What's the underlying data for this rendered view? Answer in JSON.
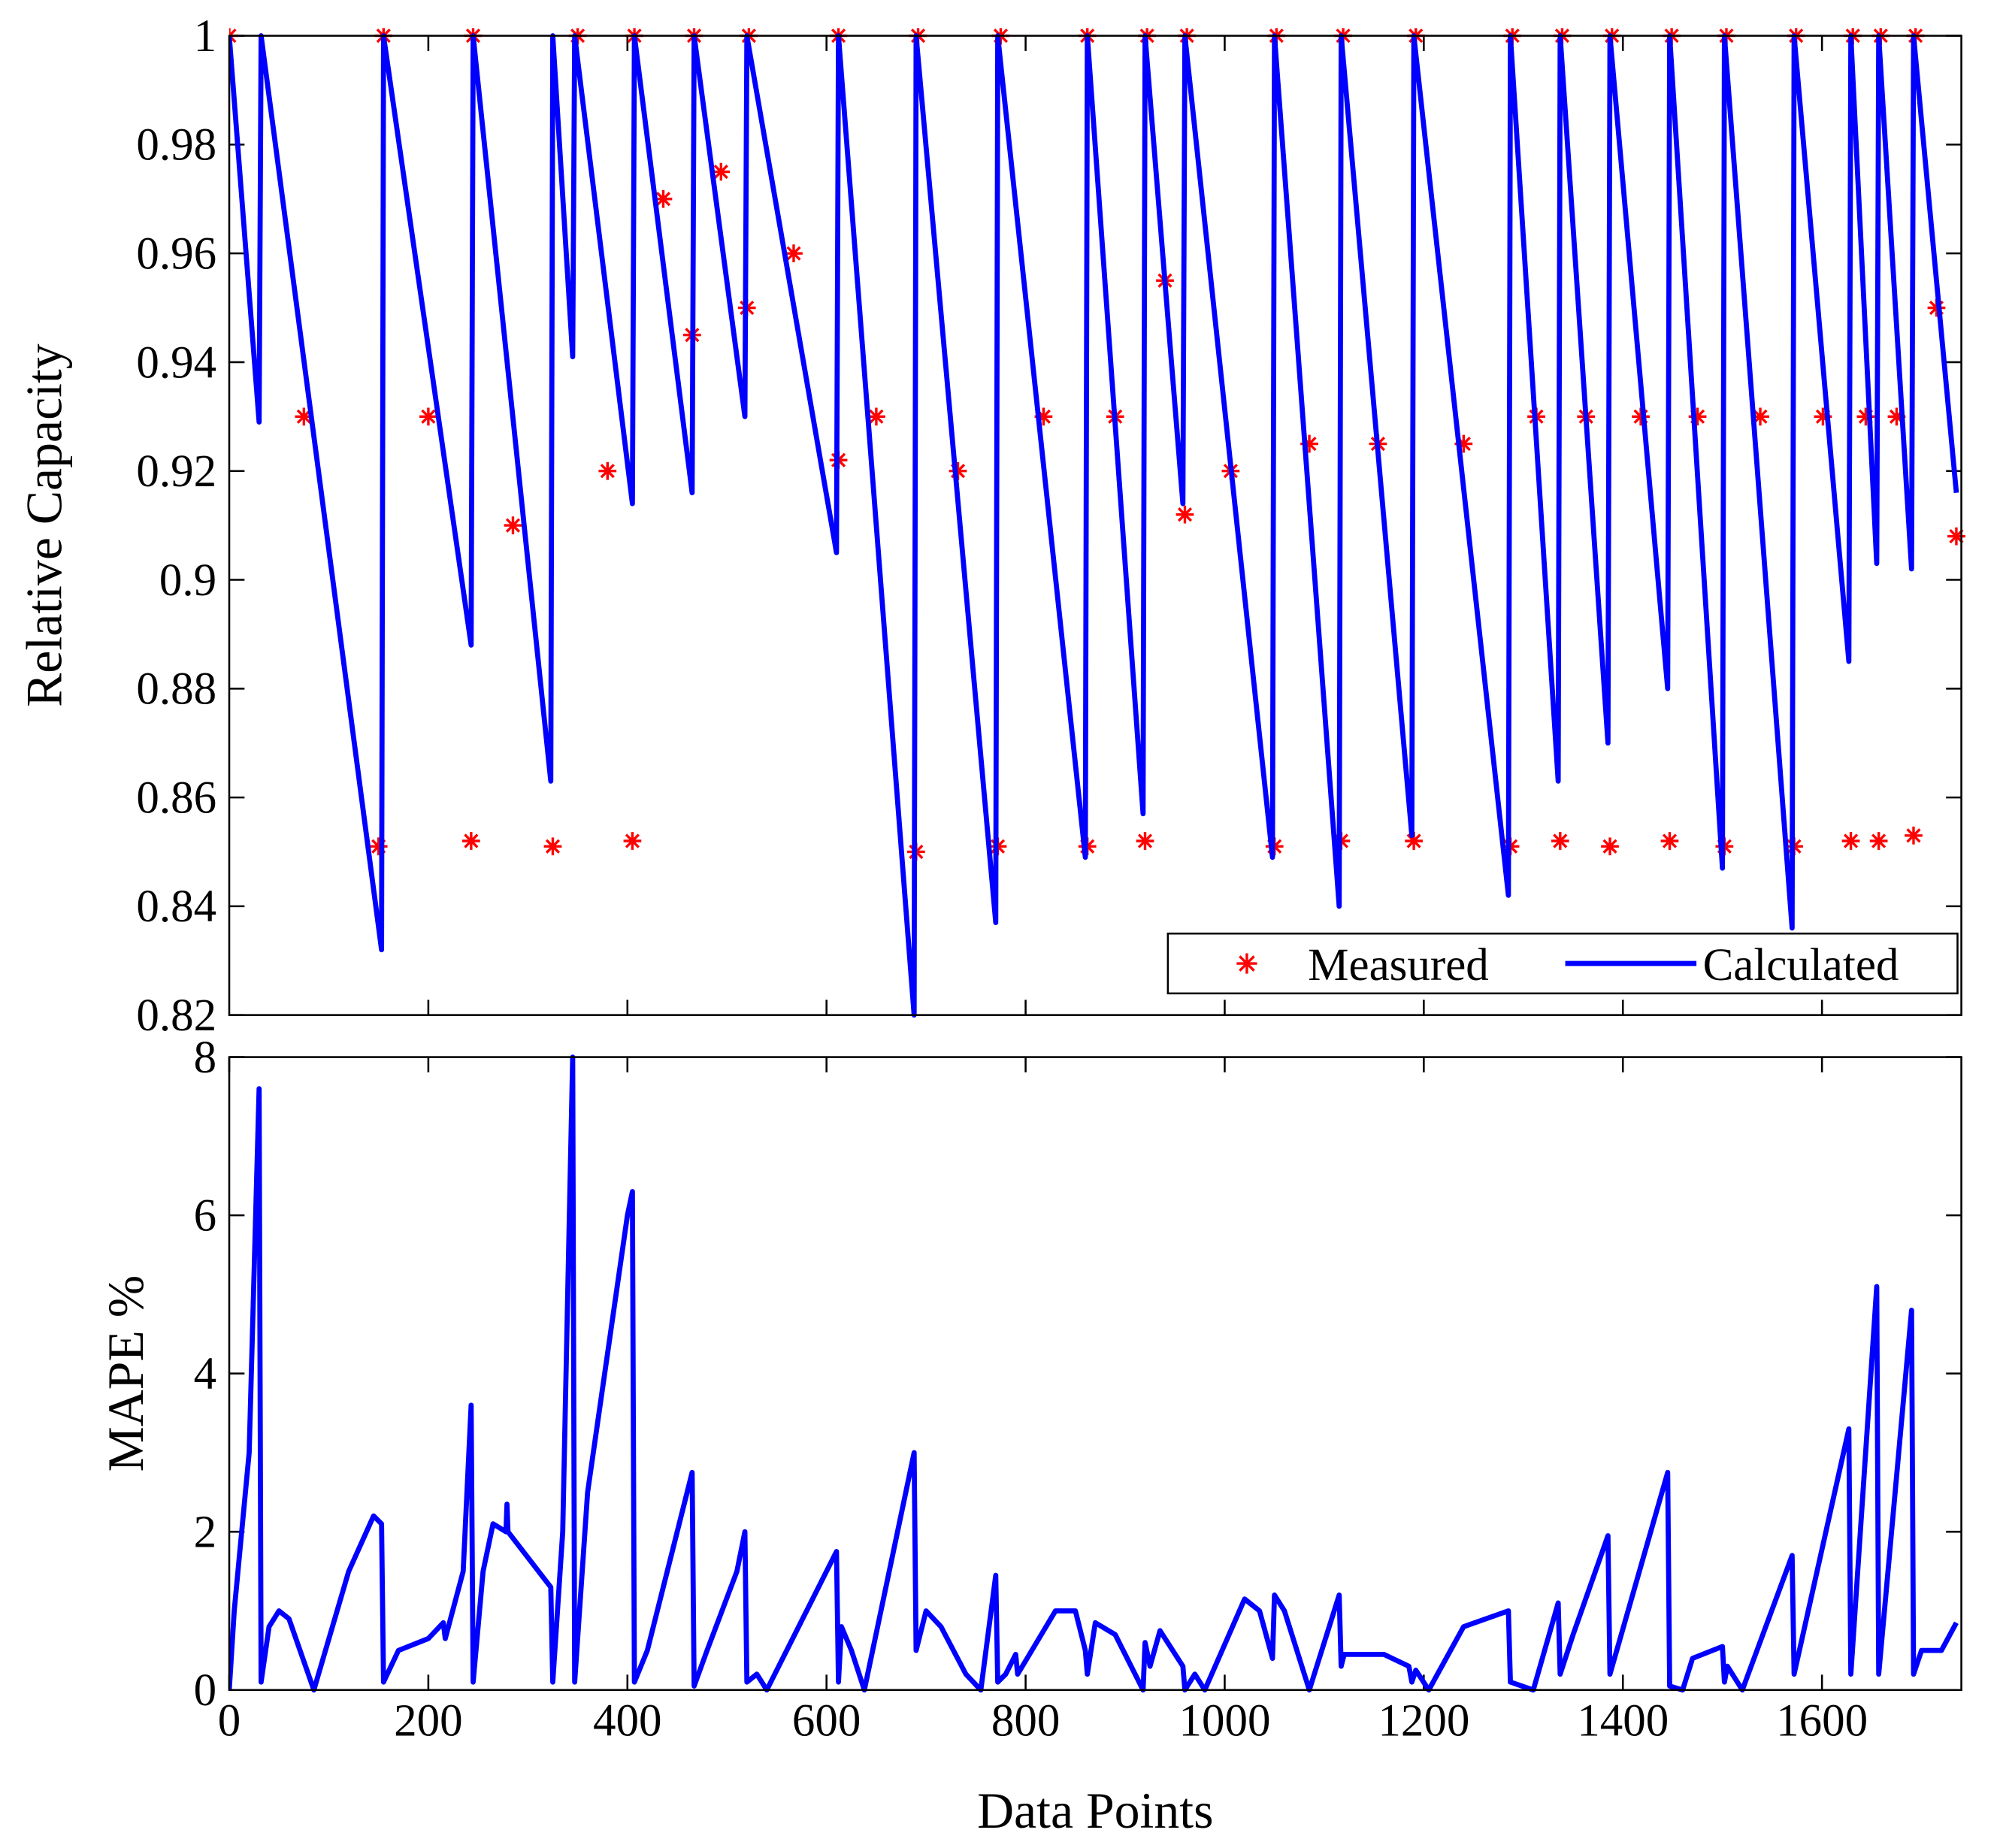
{
  "chart_data": [
    {
      "type": "line",
      "ylabel": "Relative Capacity",
      "xlim": [
        0,
        1740
      ],
      "xticks": [
        200,
        400,
        600,
        800,
        1000,
        1200,
        1400,
        1600
      ],
      "ylim": [
        0.82,
        1
      ],
      "yticks": [
        0.82,
        0.84,
        0.86,
        0.88,
        0.9,
        0.92,
        0.94,
        0.96,
        0.98,
        1
      ],
      "legend": "lower right",
      "series": [
        {
          "name": "Measured",
          "color": "#ff0000",
          "marker": "*",
          "x": [
            0,
            75,
            150,
            155,
            200,
            243,
            245,
            285,
            325,
            350,
            380,
            405,
            407,
            436,
            465,
            467,
            494,
            520,
            522,
            567,
            612,
            612,
            650,
            690,
            692,
            732,
            772,
            775,
            818,
            862,
            862,
            890,
            920,
            922,
            940,
            960,
            962,
            1006,
            1050,
            1052,
            1085,
            1117,
            1119,
            1154,
            1190,
            1192,
            1240,
            1287,
            1289,
            1313,
            1337,
            1339,
            1363,
            1387,
            1389,
            1418,
            1447,
            1449,
            1475,
            1502,
            1504,
            1538,
            1572,
            1574,
            1601,
            1629,
            1631,
            1644,
            1657,
            1659,
            1675,
            1692,
            1694,
            1715,
            1735
          ],
          "values": [
            1,
            0.93,
            0.851,
            1,
            0.93,
            0.852,
            1,
            0.91,
            0.851,
            1,
            0.92,
            0.852,
            1,
            0.97,
            0.945,
            1,
            0.975,
            0.95,
            1,
            0.96,
            0.922,
            1,
            0.93,
            0.85,
            1,
            0.92,
            0.851,
            1,
            0.93,
            0.851,
            1,
            0.93,
            0.852,
            1,
            0.955,
            0.912,
            1,
            0.92,
            0.851,
            1,
            0.925,
            0.852,
            1,
            0.925,
            0.852,
            1,
            0.925,
            0.851,
            1,
            0.93,
            0.852,
            1,
            0.93,
            0.851,
            1,
            0.93,
            0.852,
            1,
            0.93,
            0.851,
            1,
            0.93,
            0.851,
            1,
            0.93,
            0.852,
            1,
            0.93,
            0.852,
            1,
            0.93,
            0.853,
            1,
            0.95,
            0.908
          ]
        },
        {
          "name": "Calculated",
          "color": "#0000ff",
          "x": [
            0,
            30,
            32,
            153,
            155,
            243,
            245,
            323,
            325,
            345,
            347,
            405,
            407,
            465,
            467,
            518,
            520,
            610,
            612,
            688,
            690,
            770,
            772,
            860,
            862,
            918,
            920,
            958,
            960,
            1048,
            1050,
            1115,
            1117,
            1188,
            1190,
            1285,
            1287,
            1335,
            1337,
            1385,
            1387,
            1445,
            1447,
            1500,
            1502,
            1570,
            1572,
            1627,
            1629,
            1655,
            1657,
            1690,
            1692,
            1735
          ],
          "values": [
            1,
            0.929,
            1,
            0.832,
            1,
            0.888,
            1,
            0.863,
            1,
            0.941,
            1,
            0.914,
            1,
            0.916,
            1,
            0.93,
            1,
            0.905,
            1,
            0.82,
            1,
            0.837,
            1,
            0.849,
            1,
            0.857,
            1,
            0.914,
            1,
            0.849,
            1,
            0.84,
            1,
            0.853,
            1,
            0.842,
            1,
            0.863,
            1,
            0.87,
            1,
            0.88,
            1,
            0.847,
            1,
            0.836,
            1,
            0.885,
            1,
            0.903,
            1,
            0.902,
            1,
            0.916
          ]
        }
      ]
    },
    {
      "type": "line",
      "xlabel": "Data Points",
      "ylabel": "MAPE %",
      "xlim": [
        0,
        1740
      ],
      "xticks": [
        0,
        200,
        400,
        600,
        800,
        1000,
        1200,
        1400,
        1600
      ],
      "ylim": [
        0,
        8
      ],
      "yticks": [
        0,
        2,
        4,
        6,
        8
      ],
      "series": [
        {
          "color": "#0000ff",
          "x": [
            0,
            5,
            20,
            30,
            32,
            40,
            50,
            60,
            85,
            120,
            145,
            153,
            155,
            170,
            200,
            215,
            217,
            235,
            243,
            245,
            255,
            265,
            278,
            279,
            280,
            323,
            325,
            335,
            345,
            347,
            360,
            400,
            405,
            407,
            420,
            465,
            467,
            480,
            510,
            518,
            520,
            530,
            540,
            610,
            612,
            615,
            625,
            638,
            688,
            690,
            700,
            715,
            740,
            755,
            770,
            772,
            780,
            790,
            792,
            830,
            850,
            860,
            862,
            870,
            890,
            918,
            920,
            925,
            935,
            958,
            960,
            970,
            980,
            1020,
            1035,
            1048,
            1050,
            1060,
            1085,
            1115,
            1117,
            1120,
            1160,
            1185,
            1188,
            1192,
            1205,
            1240,
            1285,
            1287,
            1310,
            1335,
            1337,
            1350,
            1385,
            1387,
            1445,
            1447,
            1460,
            1470,
            1490,
            1500,
            1502,
            1505,
            1520,
            1570,
            1572,
            1627,
            1629,
            1655,
            1657,
            1690,
            1692,
            1700,
            1720,
            1735
          ],
          "values": [
            0,
            1,
            3,
            7.6,
            0.1,
            0.8,
            1,
            0.9,
            0,
            1.5,
            2.2,
            2.1,
            0.1,
            0.5,
            0.65,
            0.85,
            0.65,
            1.5,
            3.6,
            0.1,
            1.5,
            2.1,
            2,
            2.35,
            2,
            1.3,
            0.1,
            2,
            8,
            0.1,
            2.5,
            6,
            6.3,
            0.1,
            0.5,
            2.75,
            0.05,
            0.5,
            1.5,
            2,
            0.1,
            0.2,
            0,
            1.75,
            0.1,
            0.8,
            0.5,
            0,
            3,
            0.5,
            1,
            0.8,
            0.2,
            0,
            1.45,
            0.1,
            0.2,
            0.45,
            0.2,
            1,
            1,
            0.5,
            0.2,
            0.85,
            0.7,
            0,
            0.6,
            0.3,
            0.75,
            0.3,
            0,
            0.2,
            0,
            1.15,
            1,
            0.4,
            1.2,
            1,
            0,
            1.2,
            0.3,
            0.45,
            0.45,
            0.3,
            0.1,
            0.25,
            0,
            0.8,
            1,
            0.1,
            0,
            1.1,
            0.2,
            0.7,
            1.95,
            0.2,
            2.75,
            0.05,
            0,
            0.4,
            0.5,
            0.55,
            0.1,
            0.3,
            0,
            1.7,
            0.2,
            3.3,
            0.2,
            5.1,
            0.2,
            4.8,
            0.2,
            0.5,
            0.5,
            0.85
          ]
        }
      ]
    }
  ]
}
